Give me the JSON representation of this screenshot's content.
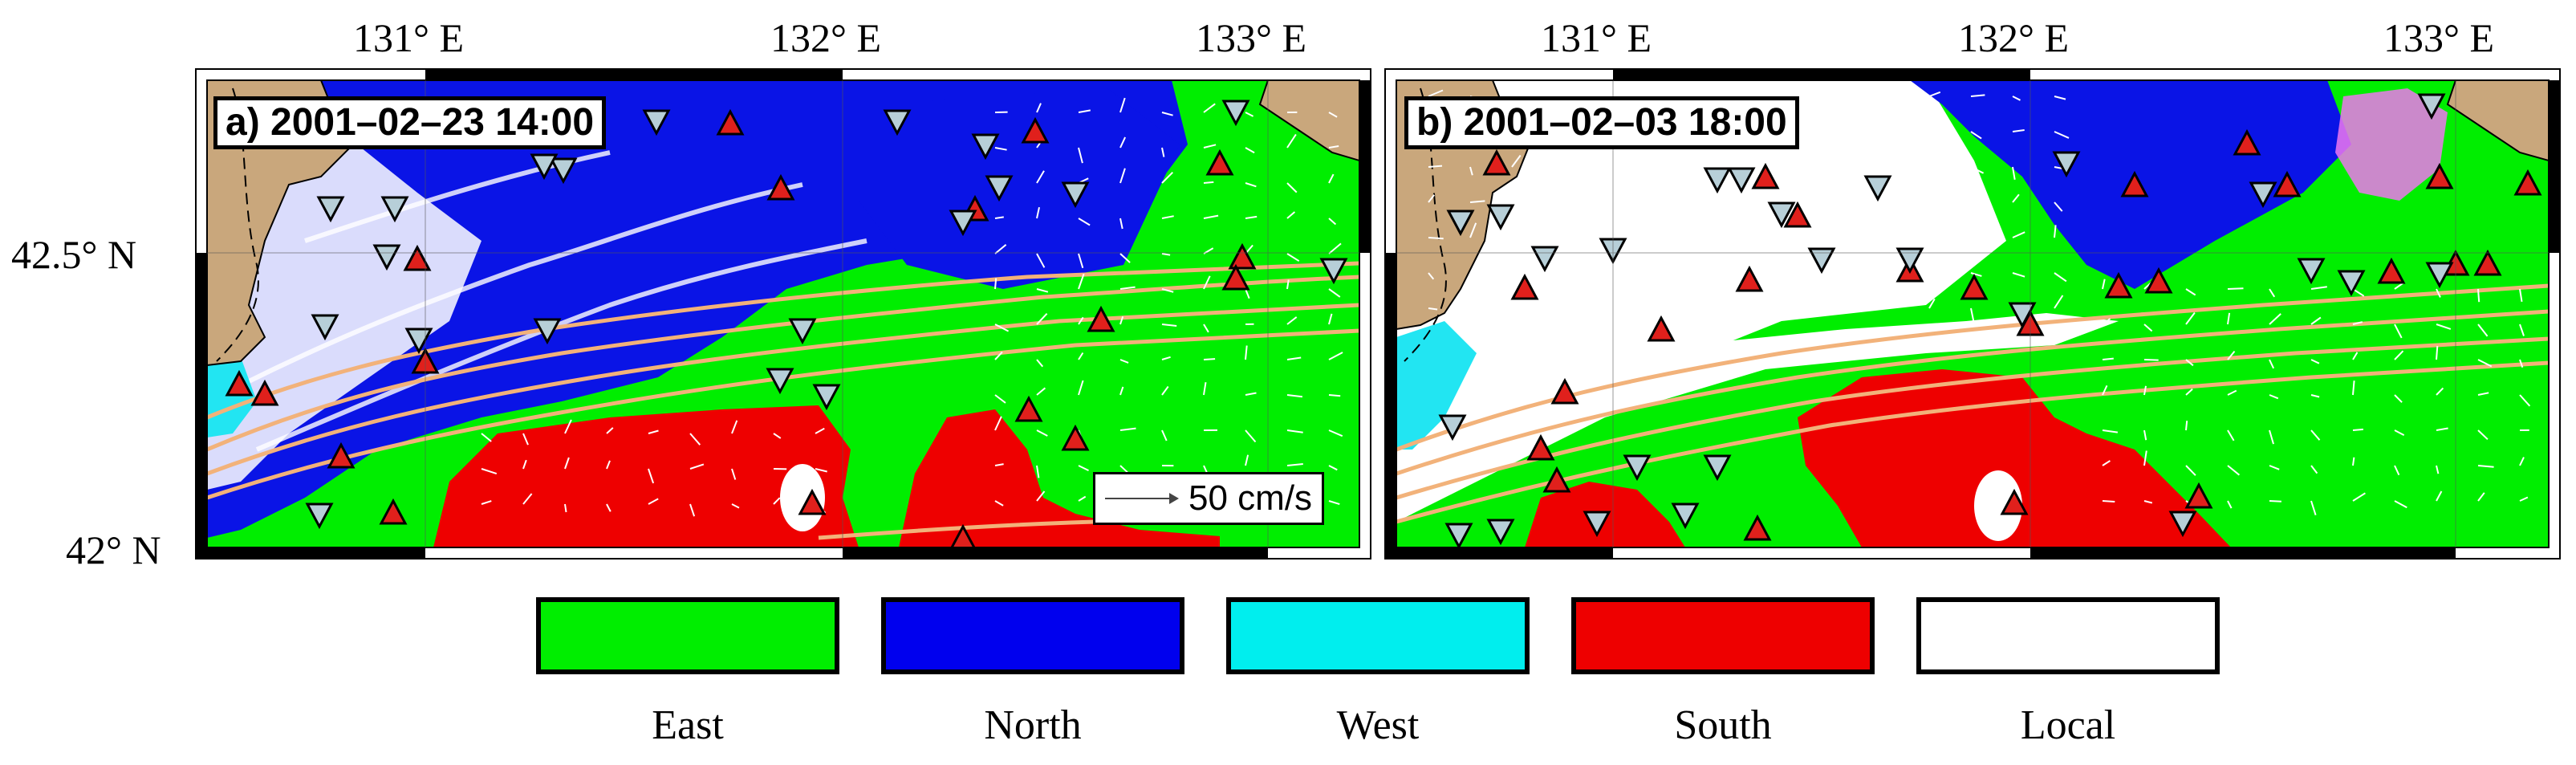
{
  "longitude_labels": [
    "131° E",
    "132° E",
    "133° E"
  ],
  "latitude_labels": [
    "42.5° N",
    "42° N"
  ],
  "panels": [
    {
      "id": "a",
      "title": "a) 2001–02–23 14:00"
    },
    {
      "id": "b",
      "title": "b) 2001–02–03 18:00"
    }
  ],
  "velocity_scale": {
    "label": "50 cm/s"
  },
  "legend": [
    {
      "label": "East",
      "color": "#00ee00"
    },
    {
      "label": "North",
      "color": "#0000ee"
    },
    {
      "label": "West",
      "color": "#00eeee"
    },
    {
      "label": "South",
      "color": "#ee0000"
    },
    {
      "label": "Local",
      "color": "#ffffff"
    }
  ],
  "colors": {
    "land": "#c9a77c",
    "contour": "#f2b27a",
    "upward_marker": "#e0201c",
    "downward_marker": "#b7cfd8",
    "mixing_patch": "#ee77ee"
  },
  "markers": {
    "upward": "triangle-up",
    "downward": "triangle-down"
  }
}
